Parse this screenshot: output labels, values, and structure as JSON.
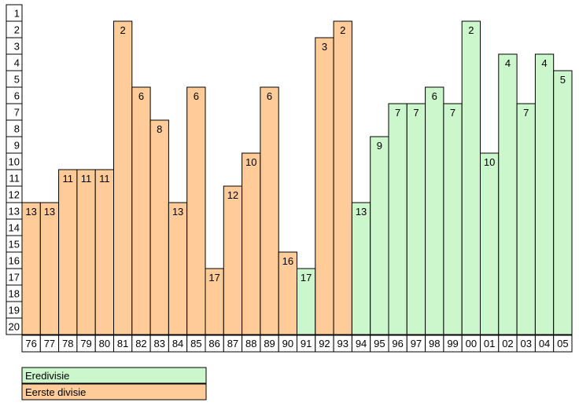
{
  "colors": {
    "eredivisie": "#ccf7cc",
    "eerste_divisie": "#ffcc99",
    "border": "#000000"
  },
  "legend": {
    "eredivisie": "Eredivisie",
    "eerste_divisie": "Eerste divisie"
  },
  "chart_data": {
    "type": "bar",
    "title": "",
    "xlabel": "",
    "ylabel": "",
    "y_axis_reversed": true,
    "ylim": [
      1,
      20
    ],
    "y_ticks": [
      "1",
      "2",
      "3",
      "4",
      "5",
      "6",
      "7",
      "8",
      "9",
      "10",
      "11",
      "12",
      "13",
      "14",
      "15",
      "16",
      "17",
      "18",
      "19",
      "20"
    ],
    "categories": [
      "76",
      "77",
      "78",
      "79",
      "80",
      "81",
      "82",
      "83",
      "84",
      "85",
      "86",
      "87",
      "88",
      "89",
      "90",
      "91",
      "92",
      "93",
      "94",
      "95",
      "96",
      "97",
      "98",
      "99",
      "00",
      "01",
      "02",
      "03",
      "04",
      "05"
    ],
    "values": [
      13,
      13,
      11,
      11,
      11,
      2,
      6,
      8,
      13,
      6,
      17,
      12,
      10,
      6,
      16,
      17,
      3,
      2,
      13,
      9,
      7,
      7,
      6,
      7,
      2,
      10,
      4,
      7,
      4,
      5
    ],
    "league": [
      "eerste_divisie",
      "eerste_divisie",
      "eerste_divisie",
      "eerste_divisie",
      "eerste_divisie",
      "eerste_divisie",
      "eerste_divisie",
      "eerste_divisie",
      "eerste_divisie",
      "eerste_divisie",
      "eerste_divisie",
      "eerste_divisie",
      "eerste_divisie",
      "eerste_divisie",
      "eerste_divisie",
      "eredivisie",
      "eerste_divisie",
      "eerste_divisie",
      "eredivisie",
      "eredivisie",
      "eredivisie",
      "eredivisie",
      "eredivisie",
      "eredivisie",
      "eredivisie",
      "eredivisie",
      "eredivisie",
      "eredivisie",
      "eredivisie",
      "eredivisie"
    ],
    "legend_placement": "bottom-left"
  }
}
